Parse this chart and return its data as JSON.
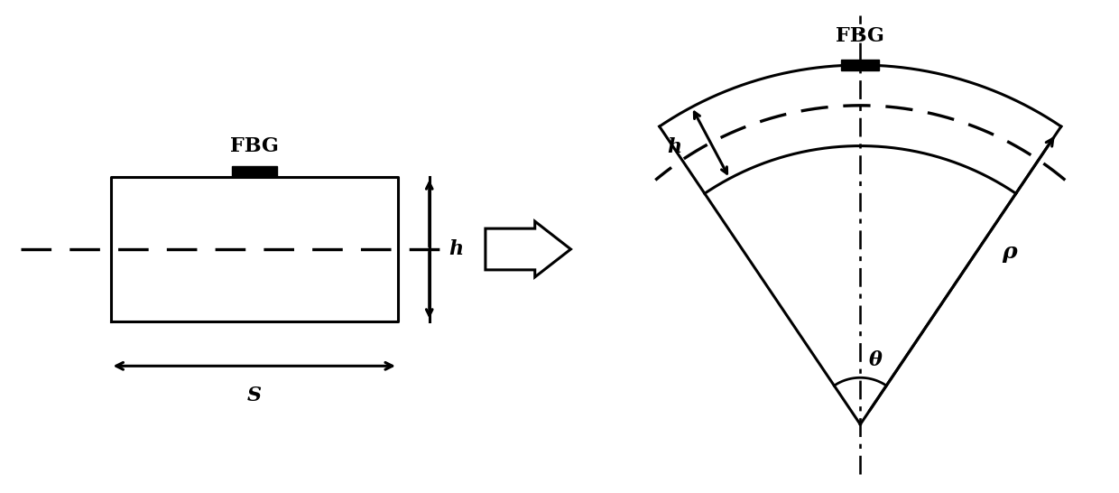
{
  "bg_color": "#ffffff",
  "line_color": "#000000",
  "fig_width": 12.4,
  "fig_height": 5.46,
  "label_FBG_left": "FBG",
  "label_h_left": "h",
  "label_s": "S",
  "label_FBG_right": "FBG",
  "label_h_right": "h",
  "label_theta": "θ",
  "label_rho": "ρ",
  "lw": 2.2
}
